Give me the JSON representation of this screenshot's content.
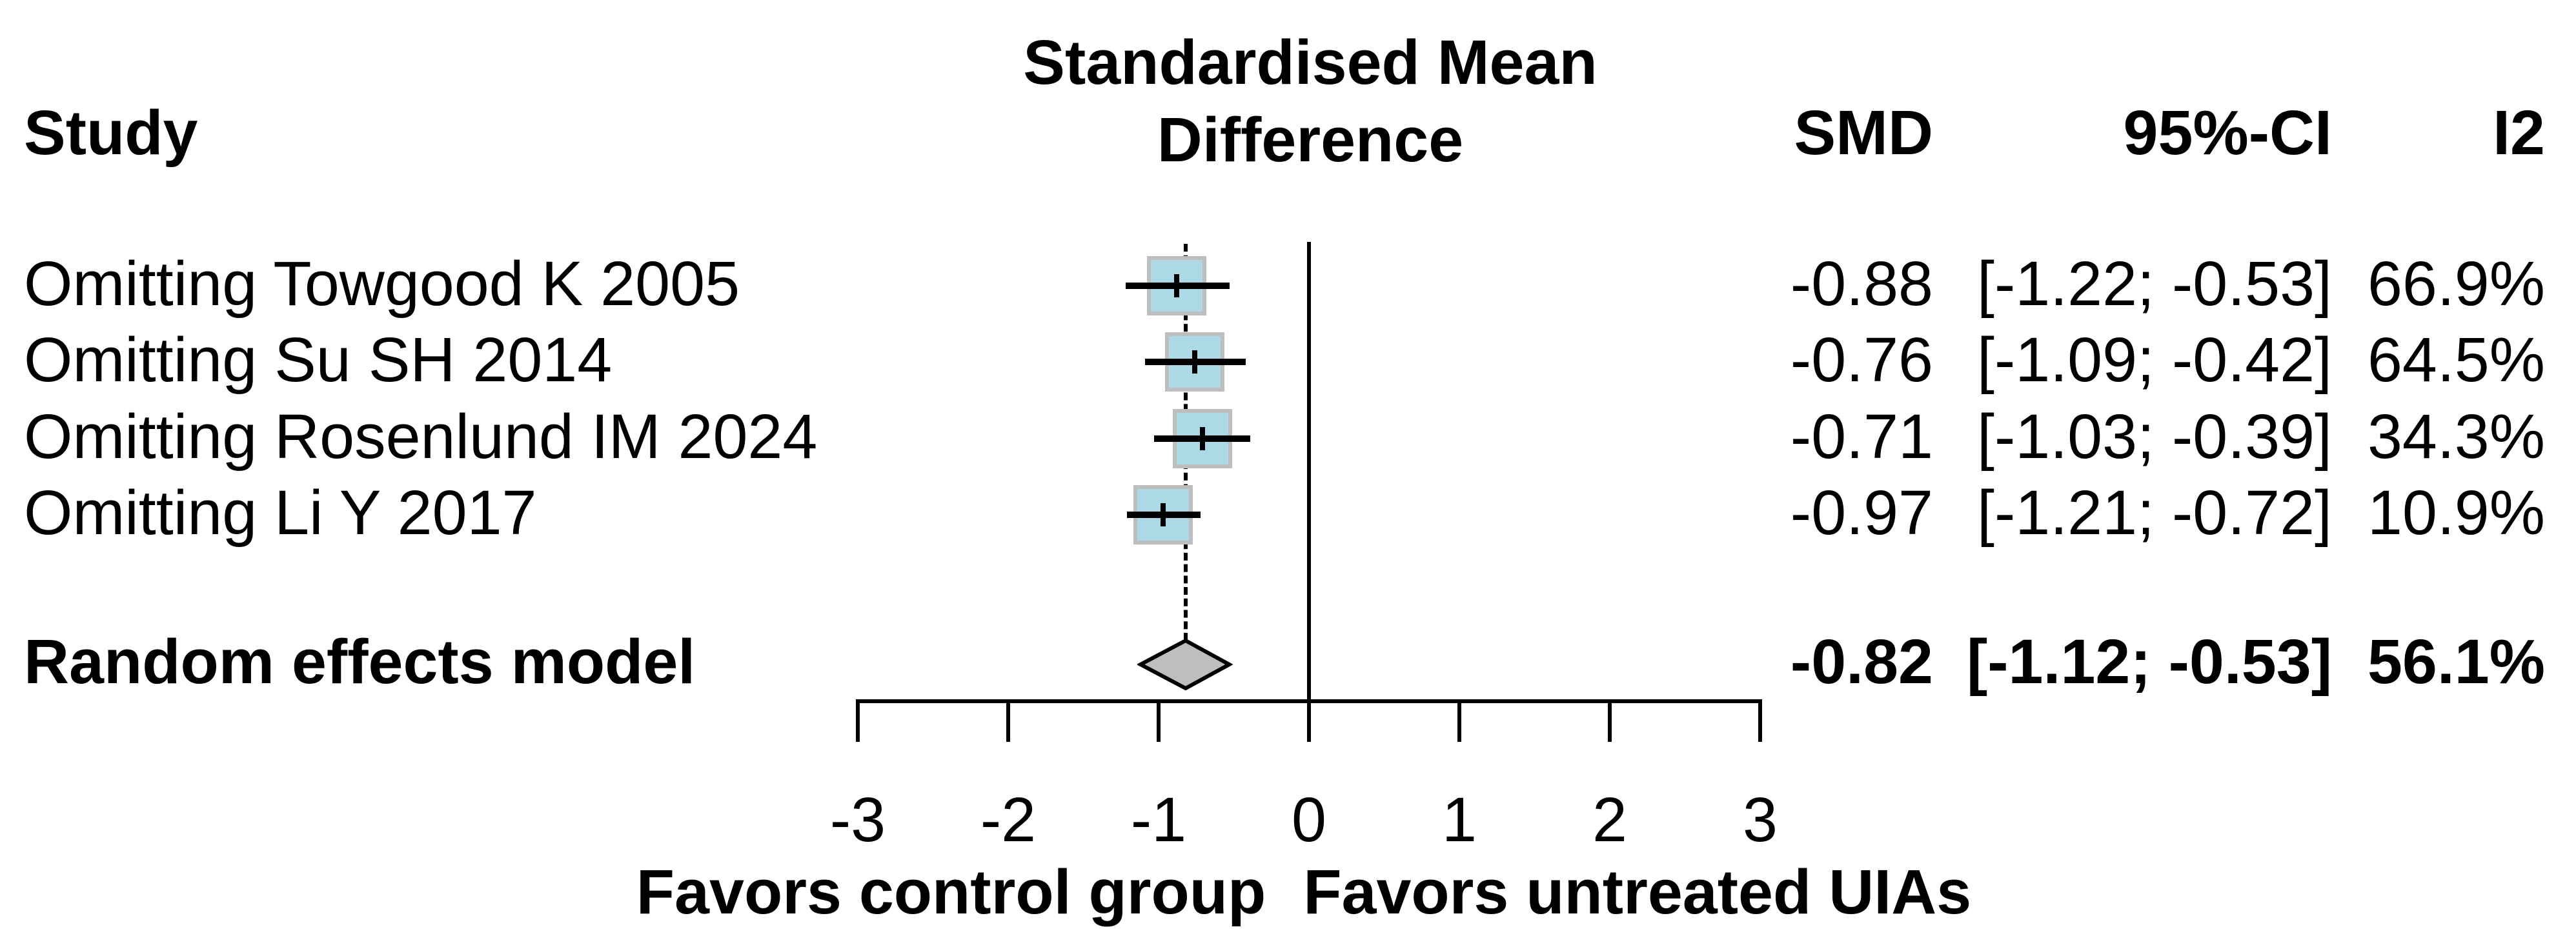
{
  "header": {
    "study_col": "Study",
    "effect_col_line1": "Standardised Mean",
    "effect_col_line2": "Difference",
    "smd_col": "SMD",
    "ci_col": "95%-CI",
    "i2_col": "I2"
  },
  "chart_data": {
    "type": "forest",
    "x_axis": {
      "range": [
        -3,
        3
      ],
      "ticks": [
        -3,
        -2,
        -1,
        0,
        1,
        2,
        3
      ],
      "tick_labels": [
        "-3",
        "-2",
        "-1",
        "0",
        "1",
        "2",
        "3"
      ],
      "zero_reference_line": 0,
      "pooled_dashed_line": -0.82,
      "label_left": "Favors control group",
      "label_right": "Favors untreated UIAs"
    },
    "studies": [
      {
        "label": "Omitting Towgood K 2005",
        "smd": -0.88,
        "ci_low": -1.22,
        "ci_high": -0.53,
        "smd_text": "-0.88",
        "ci_text": "[-1.22; -0.53]",
        "i2_text": "66.9%"
      },
      {
        "label": "Omitting Su SH 2014",
        "smd": -0.76,
        "ci_low": -1.09,
        "ci_high": -0.42,
        "smd_text": "-0.76",
        "ci_text": "[-1.09; -0.42]",
        "i2_text": "64.5%"
      },
      {
        "label": "Omitting Rosenlund IM 2024",
        "smd": -0.71,
        "ci_low": -1.03,
        "ci_high": -0.39,
        "smd_text": "-0.71",
        "ci_text": "[-1.03; -0.39]",
        "i2_text": "34.3%"
      },
      {
        "label": "Omitting Li Y 2017",
        "smd": -0.97,
        "ci_low": -1.21,
        "ci_high": -0.72,
        "smd_text": "-0.97",
        "ci_text": "[-1.21; -0.72]",
        "i2_text": "10.9%"
      }
    ],
    "pooled": {
      "label": "Random effects model",
      "smd": -0.82,
      "ci_low": -1.12,
      "ci_high": -0.53,
      "smd_text": "-0.82",
      "ci_text": "[-1.12; -0.53]",
      "i2_text": "56.1%"
    }
  },
  "colors": {
    "square_fill": "#ADD8E6",
    "square_border": "#BEBEBE",
    "diamond_fill": "#BEBEBE",
    "line": "#000000"
  }
}
